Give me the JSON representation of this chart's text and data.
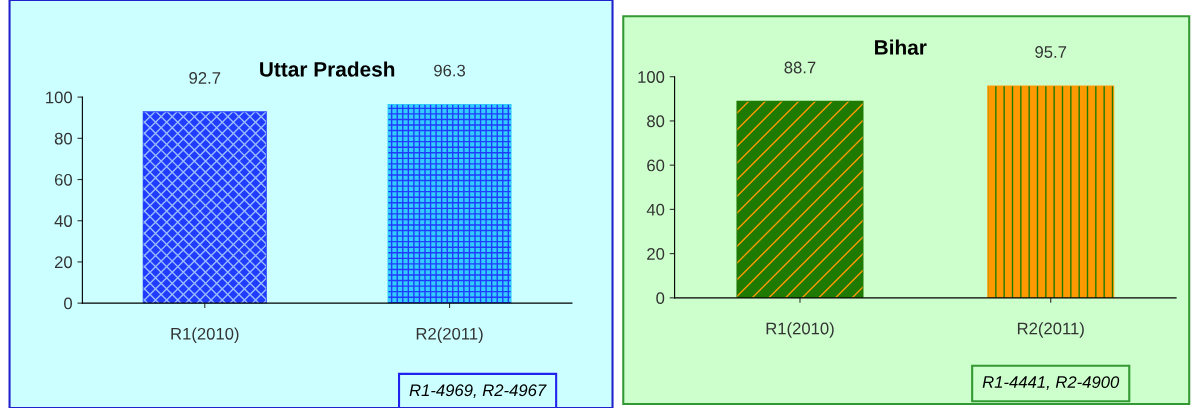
{
  "chart_data": [
    {
      "type": "bar",
      "title": "Uttar Pradesh",
      "categories": [
        "R1(2010)",
        "R2(2011)"
      ],
      "values": [
        92.7,
        96.3
      ],
      "colors": [
        "#1f3cff",
        "#33ccff"
      ],
      "ylim": [
        0,
        100
      ],
      "yticks": [
        0,
        20,
        40,
        60,
        80,
        100
      ],
      "data_labels": true,
      "grid": false,
      "annotations": [
        "R1-4969, R2-4967"
      ]
    },
    {
      "type": "bar",
      "title": "Bihar",
      "categories": [
        "R1(2010)",
        "R2(2011)"
      ],
      "values": [
        88.7,
        95.7
      ],
      "colors": [
        "#1e7a00",
        "#ff9900"
      ],
      "ylim": [
        0,
        100
      ],
      "yticks": [
        0,
        20,
        40,
        60,
        80,
        100
      ],
      "data_labels": true,
      "grid": false,
      "annotations": [
        "R1-4441, R2-4900"
      ]
    }
  ]
}
